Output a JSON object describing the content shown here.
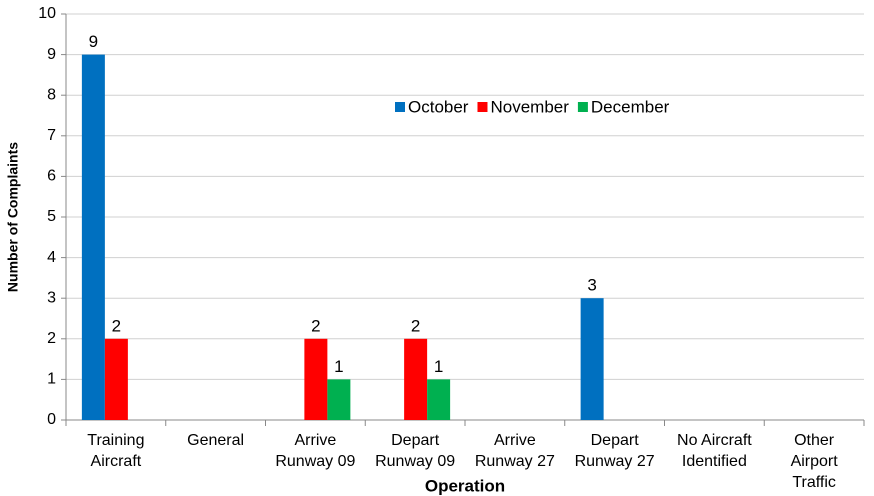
{
  "chart_data": {
    "type": "bar",
    "categories": [
      [
        "Training",
        "Aircraft"
      ],
      [
        "General"
      ],
      [
        "Arrive",
        "Runway 09"
      ],
      [
        "Depart",
        "Runway 09"
      ],
      [
        "Arrive",
        "Runway 27"
      ],
      [
        "Depart",
        "Runway 27"
      ],
      [
        "No Aircraft",
        "Identified"
      ],
      [
        "Other",
        "Airport",
        "Traffic"
      ]
    ],
    "series": [
      {
        "name": "October",
        "color": "#0070c0",
        "values": [
          9,
          0,
          0,
          0,
          0,
          3,
          0,
          0
        ]
      },
      {
        "name": "November",
        "color": "#ff0000",
        "values": [
          2,
          0,
          2,
          2,
          0,
          0,
          0,
          0
        ]
      },
      {
        "name": "December",
        "color": "#00b050",
        "values": [
          0,
          0,
          1,
          1,
          0,
          0,
          0,
          0
        ]
      }
    ],
    "xlabel": "Operation",
    "ylabel": "Number of Complaints",
    "ylim": [
      0,
      10
    ],
    "yticks": [
      0,
      1,
      2,
      3,
      4,
      5,
      6,
      7,
      8,
      9,
      10
    ],
    "grid": true
  }
}
